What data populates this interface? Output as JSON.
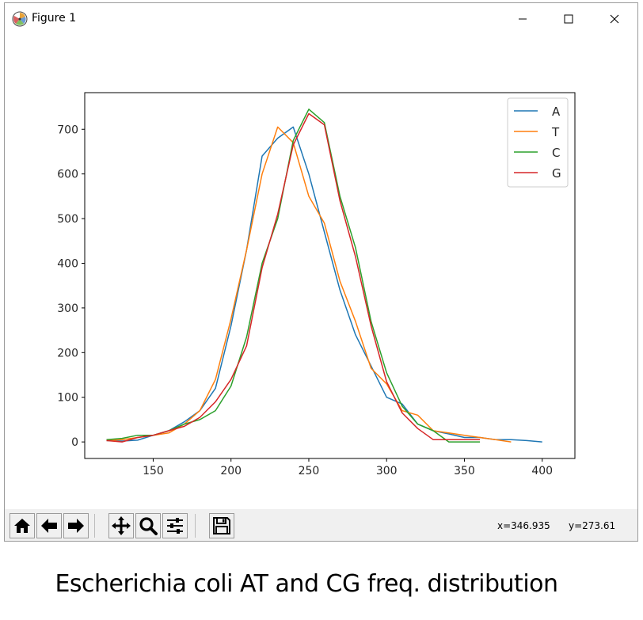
{
  "window": {
    "title": "Figure 1"
  },
  "toolbar": {
    "buttons": [
      {
        "name": "home",
        "icon": "home-icon"
      },
      {
        "name": "back",
        "icon": "arrow-left-icon"
      },
      {
        "name": "forward",
        "icon": "arrow-right-icon"
      },
      {
        "name": "pan",
        "icon": "move-icon"
      },
      {
        "name": "zoom",
        "icon": "magnifier-icon"
      },
      {
        "name": "configure-subplots",
        "icon": "sliders-icon"
      },
      {
        "name": "save",
        "icon": "floppy-disk-icon"
      }
    ],
    "coord_x": "x=346.935",
    "coord_y": "y=273.61"
  },
  "caption": "Escherichia coli AT and CG freq. distribution",
  "chart_data": {
    "type": "line",
    "title": "",
    "xlabel": "",
    "ylabel": "",
    "xlim": [
      106,
      421
    ],
    "ylim": [
      -37,
      782
    ],
    "xticks": [
      150,
      200,
      250,
      300,
      350,
      400
    ],
    "yticks": [
      0,
      100,
      200,
      300,
      400,
      500,
      600,
      700
    ],
    "legend_position": "top-right",
    "grid": false,
    "series": [
      {
        "name": "A",
        "color": "#1f77b4",
        "x": [
          120,
          130,
          140,
          150,
          160,
          170,
          180,
          190,
          200,
          210,
          220,
          230,
          240,
          250,
          260,
          270,
          280,
          290,
          300,
          310,
          320,
          330,
          340,
          350,
          360,
          370,
          380,
          390,
          400
        ],
        "y": [
          3,
          2,
          4,
          15,
          25,
          45,
          70,
          120,
          260,
          430,
          640,
          680,
          705,
          600,
          470,
          340,
          240,
          170,
          100,
          85,
          40,
          25,
          18,
          10,
          10,
          5,
          5,
          3,
          0
        ]
      },
      {
        "name": "T",
        "color": "#ff7f0e",
        "x": [
          120,
          130,
          140,
          150,
          160,
          170,
          180,
          190,
          200,
          210,
          220,
          230,
          240,
          250,
          260,
          270,
          280,
          290,
          300,
          310,
          320,
          330,
          340,
          350,
          360,
          370,
          380
        ],
        "y": [
          3,
          5,
          10,
          15,
          20,
          40,
          70,
          140,
          275,
          430,
          600,
          705,
          670,
          550,
          490,
          360,
          270,
          165,
          130,
          70,
          60,
          25,
          20,
          15,
          10,
          5,
          0
        ]
      },
      {
        "name": "C",
        "color": "#2ca02c",
        "x": [
          120,
          130,
          140,
          150,
          160,
          170,
          180,
          190,
          200,
          210,
          220,
          230,
          240,
          250,
          260,
          270,
          280,
          290,
          300,
          310,
          320,
          330,
          340,
          350,
          360
        ],
        "y": [
          5,
          8,
          15,
          15,
          25,
          40,
          50,
          70,
          125,
          235,
          400,
          500,
          675,
          745,
          715,
          550,
          435,
          270,
          155,
          80,
          40,
          25,
          0,
          0,
          0
        ]
      },
      {
        "name": "G",
        "color": "#d62728",
        "x": [
          120,
          130,
          140,
          150,
          160,
          170,
          180,
          190,
          200,
          210,
          220,
          230,
          240,
          250,
          260,
          270,
          280,
          290,
          300,
          310,
          320,
          330,
          340,
          350,
          360
        ],
        "y": [
          3,
          0,
          10,
          15,
          25,
          35,
          55,
          90,
          140,
          215,
          390,
          510,
          665,
          735,
          710,
          540,
          415,
          260,
          135,
          65,
          30,
          5,
          5,
          5,
          5
        ]
      }
    ]
  }
}
